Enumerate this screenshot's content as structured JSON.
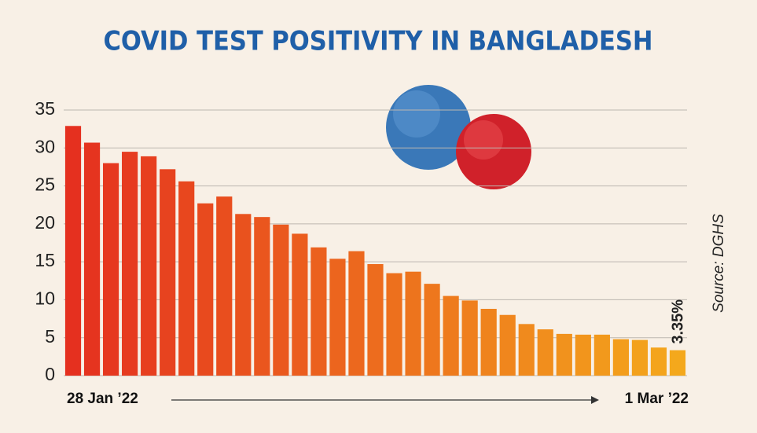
{
  "chart_data": {
    "type": "bar",
    "title": "COVID TEST POSITIVITY IN BANGLADESH",
    "source": "Source: DGHS",
    "categories": [
      "28 Jan ’22",
      null,
      null,
      null,
      null,
      null,
      null,
      null,
      null,
      null,
      null,
      null,
      null,
      null,
      null,
      null,
      null,
      null,
      null,
      null,
      null,
      null,
      null,
      null,
      null,
      null,
      null,
      null,
      null,
      null,
      null,
      null,
      "1 Mar ’22"
    ],
    "values": [
      32.9,
      30.7,
      28.0,
      29.5,
      28.9,
      27.2,
      25.6,
      22.7,
      23.6,
      21.3,
      20.9,
      19.9,
      18.7,
      16.9,
      15.4,
      16.4,
      14.7,
      13.5,
      13.7,
      12.1,
      10.5,
      9.9,
      8.8,
      8.0,
      6.8,
      6.1,
      5.5,
      5.4,
      5.4,
      4.8,
      4.7,
      3.7,
      3.35
    ],
    "value_labels": [
      null,
      null,
      null,
      null,
      null,
      null,
      null,
      null,
      null,
      null,
      null,
      null,
      null,
      null,
      null,
      null,
      null,
      null,
      null,
      null,
      null,
      null,
      null,
      null,
      null,
      null,
      null,
      null,
      null,
      null,
      null,
      null,
      "3.35%"
    ],
    "color_start": "#e5301f",
    "color_end": "#f4a81c",
    "ylim": [
      0,
      35
    ],
    "yticks": [
      0,
      5,
      10,
      15,
      20,
      25,
      30,
      35
    ],
    "grid": true
  }
}
